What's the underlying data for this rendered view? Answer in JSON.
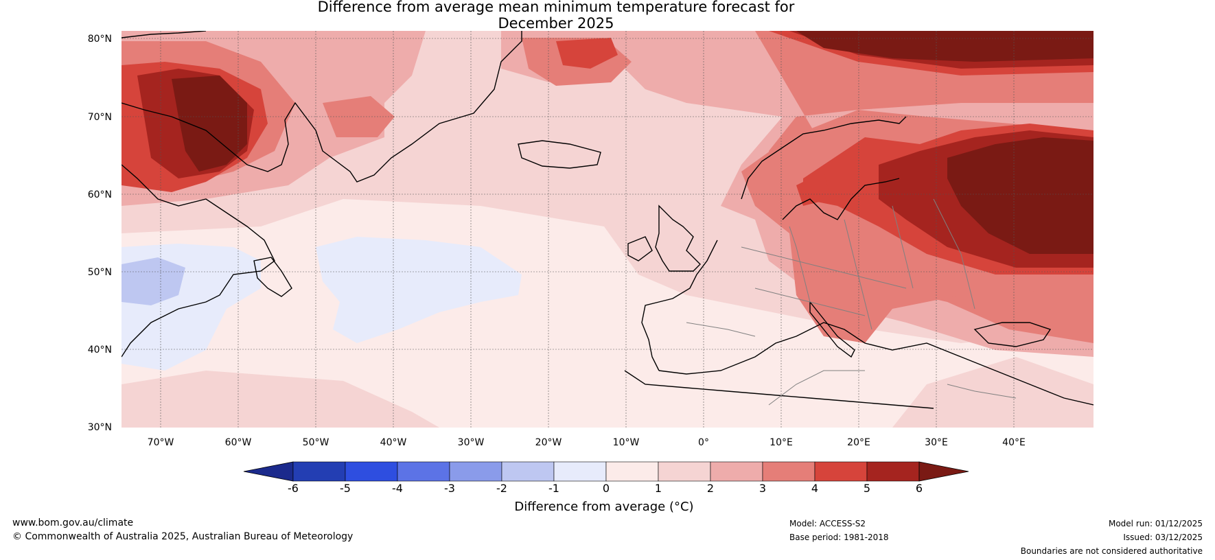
{
  "title": {
    "line1": "Difference from average mean minimum temperature forecast for",
    "line2": "December 2025"
  },
  "map": {
    "lat_ticks": [
      "80°N",
      "70°N",
      "60°N",
      "50°N",
      "40°N",
      "30°N"
    ],
    "lon_ticks": [
      "70°W",
      "60°W",
      "50°W",
      "40°W",
      "30°W",
      "20°W",
      "10°W",
      "0°",
      "10°E",
      "20°E",
      "30°E",
      "40°E"
    ],
    "land_color": "#000000",
    "border_color": "#808080"
  },
  "colorbar": {
    "label": "Difference from average (°C)",
    "ticks": [
      "-6",
      "-5",
      "-4",
      "-3",
      "-2",
      "-1",
      "0",
      "1",
      "2",
      "3",
      "4",
      "5",
      "6"
    ],
    "colors": [
      "#1b2a8c",
      "#233eb3",
      "#2e4ee0",
      "#5c73e6",
      "#8a9bea",
      "#bec7f1",
      "#e7ebfb",
      "#fcebe9",
      "#f5d4d3",
      "#eeacab",
      "#e57e78",
      "#d6443b",
      "#a5241f",
      "#7a1a14"
    ]
  },
  "footer": {
    "website": "www.bom.gov.au/climate",
    "copyright": "© Commonwealth of Australia 2025, Australian Bureau of Meteorology",
    "model": "Model: ACCESS-S2",
    "base_period": "Base period: 1981-2018",
    "model_run": "Model run: 01/12/2025",
    "issued": "Issued: 03/12/2025",
    "disclaimer": "Boundaries are not considered authoritative"
  }
}
